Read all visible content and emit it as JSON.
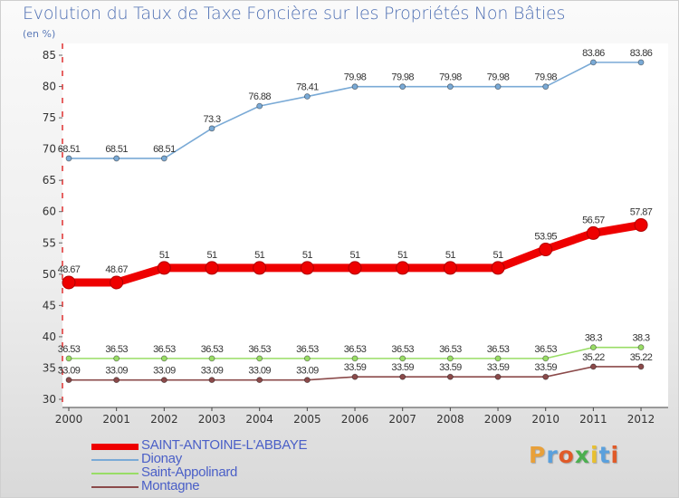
{
  "header": {
    "title": "Evolution du Taux de Taxe Foncière sur les Propriétés Non Bâties",
    "unit": "(en %)"
  },
  "logo": {
    "text": "Proxiti",
    "colors": [
      "#e8a03a",
      "#5aa0dd",
      "#e05a28",
      "#4caf50",
      "#e8c030",
      "#5aa0dd",
      "#e05a28"
    ]
  },
  "chart_data": {
    "type": "line",
    "title": "Evolution du Taux de Taxe Foncière sur les Propriétés Non Bâties",
    "ylabel": "(en %)",
    "xlabel": "",
    "x": [
      "2000",
      "2001",
      "2002",
      "2003",
      "2004",
      "2005",
      "2006",
      "2007",
      "2008",
      "2009",
      "2010",
      "2011",
      "2012"
    ],
    "ylim": [
      30,
      85
    ],
    "yticks": [
      30,
      35,
      40,
      45,
      50,
      55,
      60,
      65,
      70,
      75,
      80,
      85
    ],
    "grid": false,
    "legend": "bottom-left",
    "series": [
      {
        "name": "SAINT-ANTOINE-L'ABBAYE",
        "color": "#ee0000",
        "values": [
          48.67,
          48.67,
          51,
          51,
          51,
          51,
          51,
          51,
          51,
          51,
          53.95,
          56.57,
          57.87
        ],
        "labels": [
          "48.67",
          "48.67",
          "51",
          "51",
          "51",
          "51",
          "51",
          "51",
          "51",
          "51",
          "53.95",
          "56.57",
          "57.87"
        ]
      },
      {
        "name": "Dionay",
        "color": "#7aaad6",
        "values": [
          68.51,
          68.51,
          68.51,
          73.3,
          76.88,
          78.41,
          79.98,
          79.98,
          79.98,
          79.98,
          79.98,
          83.86,
          83.86
        ],
        "labels": [
          "68.51",
          "68.51",
          "68.51",
          "73.3",
          "76.88",
          "78.41",
          "79.98",
          "79.98",
          "79.98",
          "79.98",
          "79.98",
          "83.86",
          "83.86"
        ]
      },
      {
        "name": "Saint-Appolinard",
        "color": "#99dd66",
        "values": [
          36.53,
          36.53,
          36.53,
          36.53,
          36.53,
          36.53,
          36.53,
          36.53,
          36.53,
          36.53,
          36.53,
          38.3,
          38.3
        ],
        "labels": [
          "36.53",
          "36.53",
          "36.53",
          "36.53",
          "36.53",
          "36.53",
          "36.53",
          "36.53",
          "36.53",
          "36.53",
          "36.53",
          "38.3",
          "38.3"
        ]
      },
      {
        "name": "Montagne",
        "color": "#8b4a4a",
        "values": [
          33.09,
          33.09,
          33.09,
          33.09,
          33.09,
          33.09,
          33.59,
          33.59,
          33.59,
          33.59,
          33.59,
          35.22,
          35.22
        ],
        "labels": [
          "33.09",
          "33.09",
          "33.09",
          "33.09",
          "33.09",
          "33.09",
          "33.59",
          "33.59",
          "33.59",
          "33.59",
          "33.59",
          "35.22",
          "35.22"
        ]
      }
    ]
  }
}
